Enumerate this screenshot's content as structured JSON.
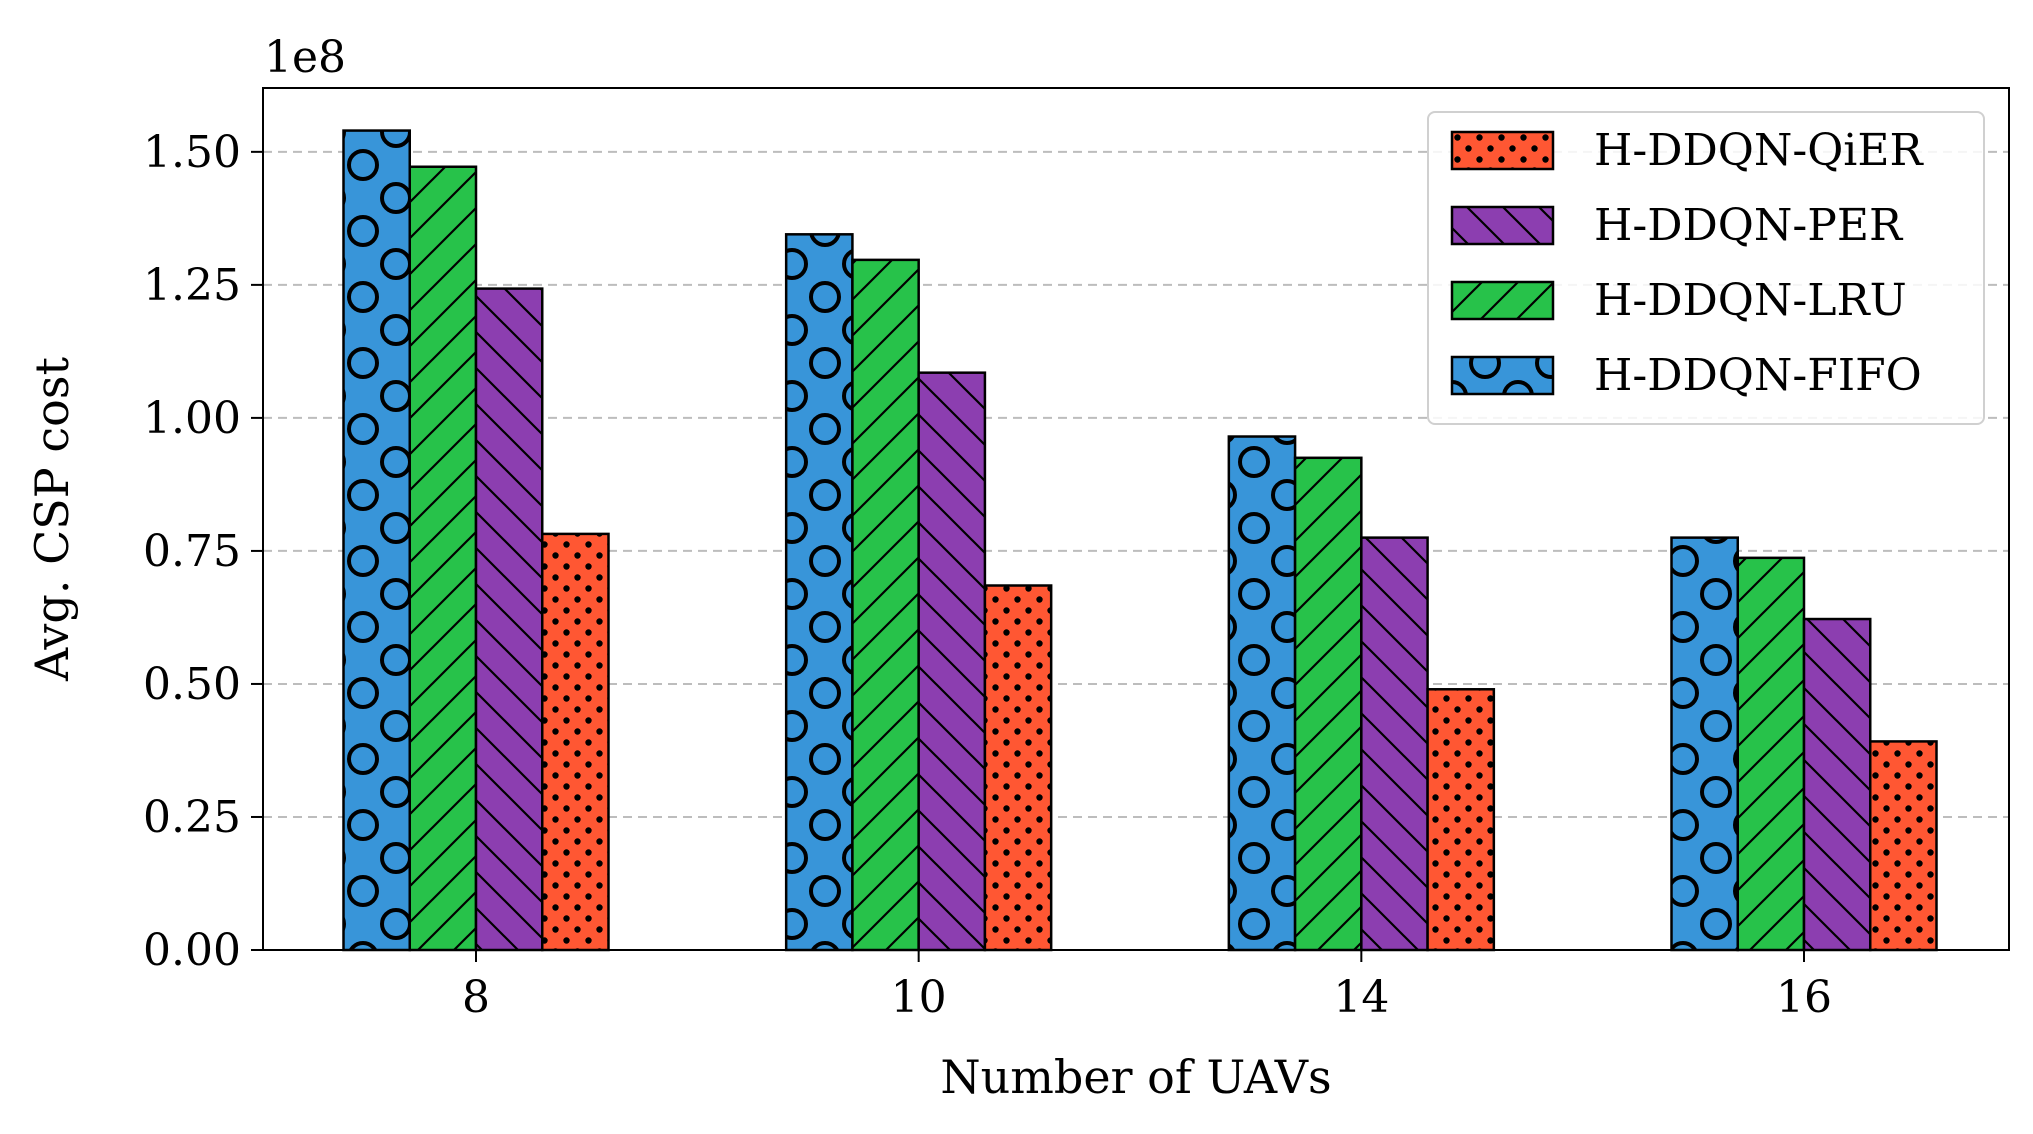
{
  "chart_data": {
    "type": "bar",
    "title": "",
    "xlabel": "Number of UAVs",
    "ylabel": "Avg. CSP cost",
    "y_offset_label": "1e8",
    "categories": [
      "8",
      "10",
      "14",
      "16"
    ],
    "ylim": [
      0,
      1.62
    ],
    "yticks": [
      0.0,
      0.25,
      0.5,
      0.75,
      1.0,
      1.25,
      1.5
    ],
    "ytick_labels": [
      "0.00",
      "0.25",
      "0.50",
      "0.75",
      "1.00",
      "1.25",
      "1.50"
    ],
    "grid": "y-dashed",
    "legend_position": "top-right",
    "series": [
      {
        "name": "H-DDQN-FIFO",
        "values": [
          1.54,
          1.345,
          0.965,
          0.775
        ],
        "color": "#3895d9",
        "pattern": "circles"
      },
      {
        "name": "H-DDQN-LRU",
        "values": [
          1.472,
          1.297,
          0.925,
          0.737
        ],
        "color": "#27c24a",
        "pattern": "forward-slash"
      },
      {
        "name": "H-DDQN-PER",
        "values": [
          1.243,
          1.085,
          0.775,
          0.622
        ],
        "color": "#8c3eb0",
        "pattern": "back-slash"
      },
      {
        "name": "H-DDQN-QiER",
        "values": [
          0.782,
          0.685,
          0.49,
          0.392
        ],
        "color": "#ff5733",
        "pattern": "dots"
      }
    ],
    "legend_order": [
      "H-DDQN-QiER",
      "H-DDQN-PER",
      "H-DDQN-LRU",
      "H-DDQN-FIFO"
    ]
  }
}
